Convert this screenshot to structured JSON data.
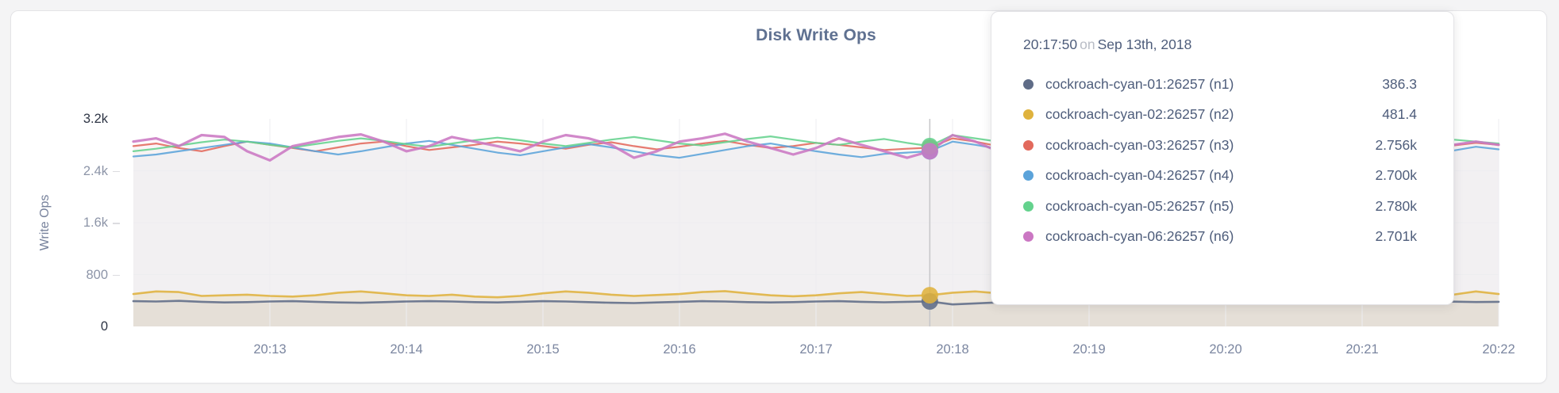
{
  "chart": {
    "title": "Disk Write Ops",
    "y_axis_label": "Write Ops"
  },
  "tooltip": {
    "time": "20:17:50",
    "on_word": "on",
    "date": "Sep 13th, 2018",
    "rows": [
      {
        "name": "cockroach-cyan-01:26257 (n1)",
        "value": "386.3",
        "color": "#5f6c87"
      },
      {
        "name": "cockroach-cyan-02:26257 (n2)",
        "value": "481.4",
        "color": "#dfb23d"
      },
      {
        "name": "cockroach-cyan-03:26257 (n3)",
        "value": "2.756k",
        "color": "#e2695c"
      },
      {
        "name": "cockroach-cyan-04:26257 (n4)",
        "value": "2.700k",
        "color": "#5ba3da"
      },
      {
        "name": "cockroach-cyan-05:26257 (n5)",
        "value": "2.780k",
        "color": "#64d28d"
      },
      {
        "name": "cockroach-cyan-06:26257 (n6)",
        "value": "2.701k",
        "color": "#cb77c3"
      }
    ]
  },
  "chart_data": {
    "type": "line",
    "title": "Disk Write Ops",
    "ylabel": "Write Ops",
    "xlabel": "",
    "ylim": [
      0,
      3200
    ],
    "grid": true,
    "x_start_time": "20:12:00",
    "x_step_seconds": 10,
    "x_domain_seconds": [
      0,
      600
    ],
    "y_ticks": [
      {
        "label": "0",
        "value": 0,
        "emphasis": true
      },
      {
        "label": "800",
        "value": 800,
        "emphasis": false
      },
      {
        "label": "1.6k",
        "value": 1600,
        "emphasis": false
      },
      {
        "label": "2.4k",
        "value": 2400,
        "emphasis": false
      },
      {
        "label": "3.2k",
        "value": 3200,
        "emphasis": true
      }
    ],
    "y_gridline_values": [
      800,
      1600,
      2400
    ],
    "x_ticks": [
      {
        "label": "20:13",
        "t": 60
      },
      {
        "label": "20:14",
        "t": 120
      },
      {
        "label": "20:15",
        "t": 180
      },
      {
        "label": "20:16",
        "t": 240
      },
      {
        "label": "20:17",
        "t": 300
      },
      {
        "label": "20:18",
        "t": 360
      },
      {
        "label": "20:19",
        "t": 420
      },
      {
        "label": "20:20",
        "t": 480
      },
      {
        "label": "20:21",
        "t": 540
      },
      {
        "label": "20:22",
        "t": 600
      }
    ],
    "hover": {
      "time": "20:17:50",
      "date": "Sep 13th, 2018",
      "index": 35
    },
    "series": [
      {
        "name": "cockroach-cyan-01:26257 (n1)",
        "color": "#5f6c87",
        "hover_value": 386.3,
        "values": [
          390,
          385,
          395,
          380,
          370,
          375,
          385,
          390,
          380,
          370,
          365,
          375,
          385,
          390,
          385,
          375,
          370,
          380,
          390,
          385,
          375,
          365,
          360,
          370,
          380,
          390,
          385,
          375,
          370,
          375,
          385,
          390,
          380,
          372,
          380,
          386.3,
          340,
          355,
          370,
          380,
          385,
          378,
          370,
          365,
          375,
          385,
          390,
          382,
          374,
          368,
          376,
          386,
          392,
          384,
          376,
          370,
          378,
          388,
          382,
          376,
          380
        ]
      },
      {
        "name": "cockroach-cyan-02:26257 (n2)",
        "color": "#dfb23d",
        "hover_value": 481.4,
        "values": [
          500,
          540,
          530,
          470,
          480,
          490,
          470,
          460,
          480,
          520,
          540,
          510,
          480,
          470,
          490,
          460,
          450,
          470,
          510,
          540,
          520,
          490,
          470,
          485,
          500,
          530,
          545,
          510,
          480,
          465,
          480,
          510,
          530,
          500,
          470,
          481.4,
          520,
          540,
          510,
          480,
          470,
          490,
          520,
          545,
          520,
          490,
          475,
          490,
          515,
          540,
          520,
          495,
          480,
          470,
          490,
          515,
          535,
          510,
          490,
          540,
          500
        ]
      },
      {
        "name": "cockroach-cyan-03:26257 (n3)",
        "color": "#e2695c",
        "hover_value": 2756,
        "values": [
          2780,
          2820,
          2750,
          2700,
          2780,
          2850,
          2800,
          2750,
          2700,
          2760,
          2820,
          2850,
          2780,
          2720,
          2760,
          2800,
          2850,
          2820,
          2780,
          2740,
          2800,
          2840,
          2780,
          2730,
          2770,
          2820,
          2860,
          2800,
          2750,
          2780,
          2830,
          2800,
          2760,
          2720,
          2740,
          2756,
          2900,
          2850,
          2780,
          2720,
          2760,
          2810,
          2850,
          2800,
          2750,
          2780,
          2820,
          2780,
          2730,
          2770,
          2810,
          2850,
          2800,
          2760,
          2800,
          2840,
          2790,
          2750,
          2790,
          2830,
          2800
        ]
      },
      {
        "name": "cockroach-cyan-04:26257 (n4)",
        "color": "#5ba3da",
        "hover_value": 2700,
        "values": [
          2620,
          2650,
          2700,
          2750,
          2800,
          2850,
          2820,
          2760,
          2700,
          2650,
          2700,
          2760,
          2820,
          2860,
          2800,
          2740,
          2680,
          2640,
          2700,
          2760,
          2810,
          2760,
          2700,
          2640,
          2600,
          2660,
          2720,
          2780,
          2820,
          2760,
          2700,
          2650,
          2610,
          2660,
          2680,
          2700,
          2850,
          2800,
          2740,
          2680,
          2720,
          2780,
          2830,
          2780,
          2720,
          2660,
          2700,
          2760,
          2800,
          2750,
          2690,
          2640,
          2700,
          2760,
          2810,
          2760,
          2700,
          2660,
          2710,
          2770,
          2730
        ]
      },
      {
        "name": "cockroach-cyan-05:26257 (n5)",
        "color": "#64d28d",
        "hover_value": 2780,
        "values": [
          2700,
          2740,
          2790,
          2840,
          2880,
          2850,
          2800,
          2760,
          2810,
          2860,
          2900,
          2860,
          2810,
          2770,
          2820,
          2870,
          2910,
          2870,
          2820,
          2780,
          2830,
          2880,
          2920,
          2870,
          2820,
          2790,
          2840,
          2890,
          2930,
          2880,
          2830,
          2800,
          2850,
          2890,
          2830,
          2780,
          2950,
          2900,
          2850,
          2800,
          2840,
          2890,
          2930,
          2880,
          2830,
          2800,
          2850,
          2900,
          2860,
          2810,
          2780,
          2830,
          2880,
          2920,
          2870,
          2830,
          2790,
          2840,
          2880,
          2850,
          2820
        ]
      },
      {
        "name": "cockroach-cyan-06:26257 (n6)",
        "color": "#cb77c3",
        "hover_value": 2701,
        "values": [
          2850,
          2900,
          2780,
          2950,
          2920,
          2700,
          2560,
          2780,
          2850,
          2920,
          2960,
          2850,
          2700,
          2780,
          2920,
          2850,
          2780,
          2700,
          2850,
          2950,
          2900,
          2800,
          2600,
          2700,
          2850,
          2900,
          2970,
          2850,
          2750,
          2650,
          2750,
          2900,
          2800,
          2700,
          2600,
          2701,
          2950,
          2850,
          2700,
          2580,
          2700,
          2850,
          2920,
          2800,
          2700,
          2770,
          2850,
          2700,
          2600,
          2750,
          2900,
          2950,
          2800,
          2700,
          2850,
          2900,
          2750,
          2650,
          2800,
          2850,
          2800
        ]
      }
    ],
    "legend_position": "tooltip",
    "style": {
      "grid_color": "#ededf0",
      "hover_line_color": "#c6c6c9",
      "area_opacities": [
        0.07,
        0.12,
        0.03,
        0.03,
        0.03,
        0.045
      ],
      "line_widths": [
        2.6,
        2.6,
        2.2,
        2.2,
        2.2,
        3.2
      ]
    }
  }
}
